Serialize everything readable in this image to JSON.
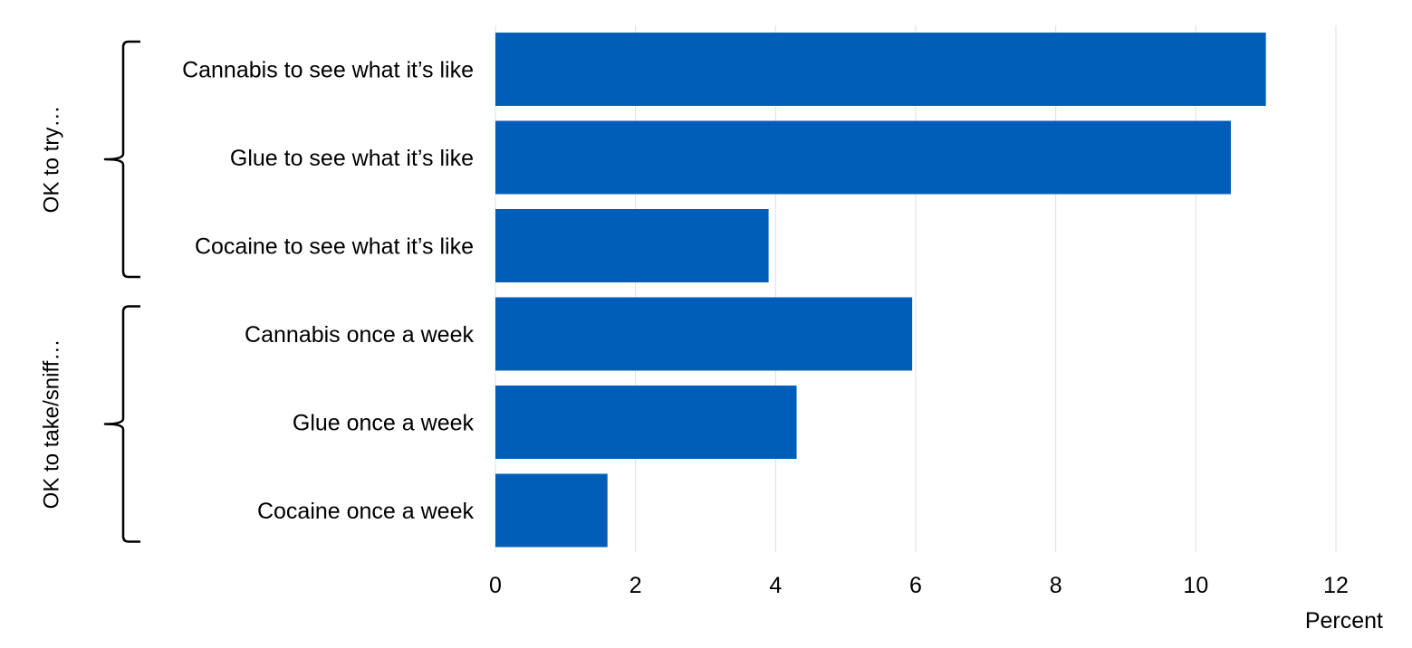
{
  "chart_data": {
    "type": "bar",
    "orientation": "horizontal",
    "categories": [
      "Cannabis to see what it’s like",
      "Glue to see what it’s like",
      "Cocaine to see what it’s like",
      "Cannabis once a week",
      "Glue once a week",
      "Cocaine once a week"
    ],
    "values": [
      11.0,
      10.5,
      3.9,
      5.95,
      4.3,
      1.6
    ],
    "groups": [
      {
        "label": "OK to try…",
        "categories": [
          0,
          1,
          2
        ]
      },
      {
        "label": "OK to take/sniff…",
        "categories": [
          3,
          4,
          5
        ]
      }
    ],
    "xlabel": "Percent",
    "ylabel": "",
    "xlim": [
      0,
      12
    ],
    "xticks": [
      0,
      2,
      4,
      6,
      8,
      10,
      12
    ],
    "grid": "vertical",
    "legend": "none",
    "bar_color": "#005EB8",
    "grid_color": "#E0E0E0"
  }
}
